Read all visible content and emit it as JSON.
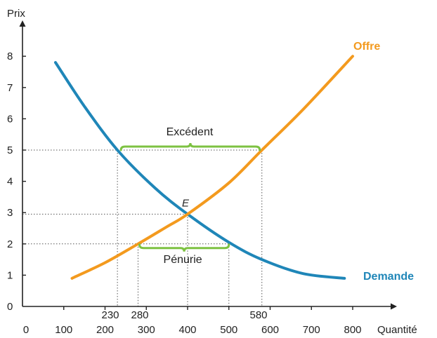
{
  "chart_data": {
    "type": "line",
    "ylabel": "Prix",
    "xlabel": "Quantité",
    "xlim": [
      0,
      900
    ],
    "ylim": [
      0,
      8.9
    ],
    "x_ticks": [
      {
        "value": 0,
        "label": "0"
      },
      {
        "value": 100,
        "label": "100"
      },
      {
        "value": 200,
        "label": "200"
      },
      {
        "value": 300,
        "label": "300"
      },
      {
        "value": 400,
        "label": "400"
      },
      {
        "value": 500,
        "label": "500"
      },
      {
        "value": 600,
        "label": "600"
      },
      {
        "value": 700,
        "label": "700"
      },
      {
        "value": 800,
        "label": "800"
      }
    ],
    "y_ticks": [
      {
        "value": 0,
        "label": "0"
      },
      {
        "value": 1,
        "label": "1"
      },
      {
        "value": 2,
        "label": "2"
      },
      {
        "value": 3,
        "label": "3"
      },
      {
        "value": 4,
        "label": "4"
      },
      {
        "value": 5,
        "label": "5"
      },
      {
        "value": 6,
        "label": "6"
      },
      {
        "value": 7,
        "label": "7"
      },
      {
        "value": 8,
        "label": "8"
      }
    ],
    "marked_quantities": [
      {
        "value": 230,
        "label": "230"
      },
      {
        "value": 280,
        "label": "280"
      },
      {
        "value": 580,
        "label": "580"
      }
    ],
    "series": [
      {
        "name": "Demande",
        "color": "#1f86b8",
        "x": [
          80,
          150,
          230,
          320,
          400,
          500,
          580,
          680,
          780
        ],
        "y": [
          7.8,
          6.4,
          5.0,
          3.8,
          2.95,
          2.05,
          1.5,
          1.05,
          0.9
        ]
      },
      {
        "name": "Offre",
        "color": "#f39a1e",
        "x": [
          120,
          200,
          280,
          350,
          400,
          500,
          580,
          680,
          800
        ],
        "y": [
          0.9,
          1.4,
          2.0,
          2.55,
          2.95,
          3.95,
          5.0,
          6.3,
          8.0
        ]
      }
    ],
    "equilibrium": {
      "label": "E",
      "x": 400,
      "y": 2.95
    },
    "reference_lines": [
      {
        "price": 5,
        "q_demand": 230,
        "q_supply": 580,
        "label": "Excédent"
      },
      {
        "price": 2,
        "q_supply": 280,
        "q_demand": 500,
        "label": "Pénurie"
      }
    ],
    "bracket_color": "#7dc242",
    "axis_color": "#222222",
    "grid": false
  }
}
